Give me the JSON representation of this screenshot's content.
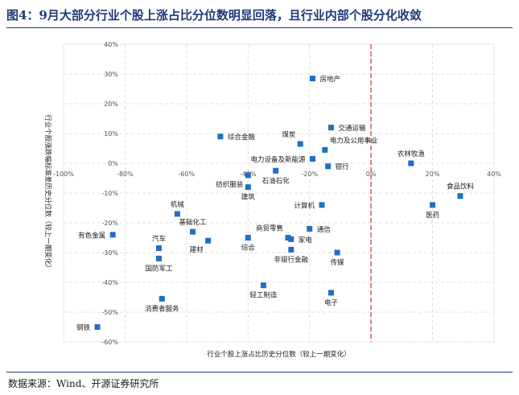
{
  "title": "图4：9月大部分行业个股上涨占比分位数明显回落，且行业内部个股分化收敛",
  "source": "数据来源：Wind、开源证券研究所",
  "colors": {
    "point": "#1f6fc5",
    "zero_line": "#e05a5a",
    "grid": "#d9d9d9",
    "rule": "#1f3a7a"
  },
  "chart_data": {
    "type": "scatter",
    "xlabel": "行业个股上涨占比历史分位数（较上一期变化）",
    "ylabel": "行业个股涨跌幅标准差历史分位数（较上一期变化）",
    "xlim": [
      -100,
      40
    ],
    "ylim": [
      -60,
      40
    ],
    "xticks": [
      -100,
      -80,
      -60,
      -40,
      -20,
      0,
      20,
      40
    ],
    "yticks": [
      -60,
      -50,
      -40,
      -30,
      -20,
      -10,
      0,
      10,
      20,
      30,
      40
    ],
    "xtick_labels": [
      "-100%",
      "-80%",
      "-60%",
      "-40%",
      "-20%",
      "0%",
      "20%",
      "40%"
    ],
    "ytick_labels": [
      "-60%",
      "-50%",
      "-40%",
      "-30%",
      "-20%",
      "-10%",
      "0%",
      "10%",
      "20%",
      "30%",
      "40%"
    ],
    "grid": true,
    "vertical_reference_line": {
      "x": 0,
      "style": "dashed"
    },
    "points": [
      {
        "name": "房地产",
        "x": -19,
        "y": 28.5,
        "anchor": "right"
      },
      {
        "name": "交通运输",
        "x": -13,
        "y": 12,
        "anchor": "right"
      },
      {
        "name": "综合金融",
        "x": -49,
        "y": 9,
        "anchor": "right"
      },
      {
        "name": "煤炭",
        "x": -23,
        "y": 6.5,
        "anchor": "above-left"
      },
      {
        "name": "电力及公用事业",
        "x": -15,
        "y": 4.5,
        "anchor": "above-right"
      },
      {
        "name": "电力设备及新能源",
        "x": -19,
        "y": 1.5,
        "anchor": "left"
      },
      {
        "name": "银行",
        "x": -14,
        "y": -1,
        "anchor": "right"
      },
      {
        "name": "石油石化",
        "x": -31,
        "y": -2.5,
        "anchor": "below"
      },
      {
        "name": "纺织服装",
        "x": -40,
        "y": -4,
        "anchor": "below-left"
      },
      {
        "name": "建筑",
        "x": -40,
        "y": -8,
        "anchor": "below"
      },
      {
        "name": "计算机",
        "x": -16,
        "y": -14,
        "anchor": "left"
      },
      {
        "name": "农林牧渔",
        "x": 13,
        "y": 0,
        "anchor": "above"
      },
      {
        "name": "食品饮料",
        "x": 29,
        "y": -11,
        "anchor": "above"
      },
      {
        "name": "医药",
        "x": 20,
        "y": -14,
        "anchor": "below"
      },
      {
        "name": "机械",
        "x": -63,
        "y": -17,
        "anchor": "above"
      },
      {
        "name": "基础化工",
        "x": -58,
        "y": -23,
        "anchor": "above"
      },
      {
        "name": "建材",
        "x": -53,
        "y": -26,
        "anchor": "below-left"
      },
      {
        "name": "有色金属",
        "x": -84,
        "y": -24,
        "anchor": "left"
      },
      {
        "name": "汽车",
        "x": -69,
        "y": -28.5,
        "anchor": "above"
      },
      {
        "name": "国防军工",
        "x": -69,
        "y": -32,
        "anchor": "below"
      },
      {
        "name": "综合",
        "x": -40,
        "y": -25,
        "anchor": "below"
      },
      {
        "name": "商贸零售",
        "x": -27,
        "y": -25,
        "anchor": "above-left"
      },
      {
        "name": "家电",
        "x": -26,
        "y": -25.5,
        "anchor": "right"
      },
      {
        "name": "通信",
        "x": -20,
        "y": -22,
        "anchor": "right"
      },
      {
        "name": "非银行金融",
        "x": -26,
        "y": -29,
        "anchor": "below"
      },
      {
        "name": "传媒",
        "x": -11,
        "y": -30,
        "anchor": "below"
      },
      {
        "name": "轻工制造",
        "x": -35,
        "y": -41,
        "anchor": "below"
      },
      {
        "name": "电子",
        "x": -13,
        "y": -43.5,
        "anchor": "below"
      },
      {
        "name": "消费者服务",
        "x": -68,
        "y": -45.5,
        "anchor": "below"
      },
      {
        "name": "钢铁",
        "x": -89,
        "y": -55,
        "anchor": "left"
      }
    ]
  }
}
